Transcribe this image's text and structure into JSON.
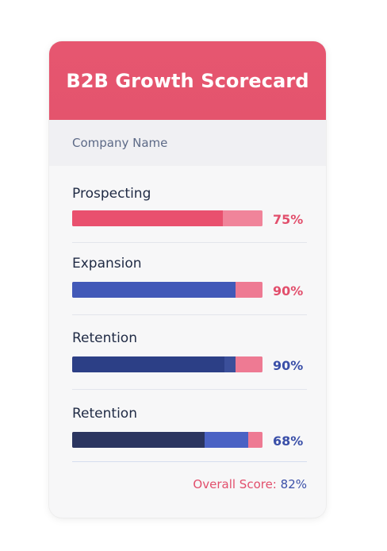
{
  "card": {
    "title": "B2B Growth Scorecard",
    "company_name": "Company Name"
  },
  "metrics": [
    {
      "label": "Prospecting",
      "value_text": "75%",
      "value_color": "#e24f6c",
      "segments": [
        {
          "fraction": 0.79,
          "color": "#e9506e"
        },
        {
          "fraction": 0.21,
          "color": "#f0849a"
        }
      ]
    },
    {
      "label": "Expansion",
      "value_text": "90%",
      "value_color": "#e24f6c",
      "segments": [
        {
          "fraction": 0.86,
          "color": "#4259b8"
        },
        {
          "fraction": 0.14,
          "color": "#ee7a93"
        }
      ]
    },
    {
      "label": "Retention",
      "value_text": "90%",
      "value_color": "#3a4fa8",
      "segments": [
        {
          "fraction": 0.8,
          "color": "#2c3f86"
        },
        {
          "fraction": 0.06,
          "color": "#3b4f9a"
        },
        {
          "fraction": 0.14,
          "color": "#ee7a93"
        }
      ]
    },
    {
      "label": "Retention",
      "value_text": "68%",
      "value_color": "#3a4fa8",
      "segments": [
        {
          "fraction": 0.695,
          "color": "#2b3560"
        },
        {
          "fraction": 0.23,
          "color": "#4a62c4"
        },
        {
          "fraction": 0.075,
          "color": "#ee7a93"
        }
      ]
    }
  ],
  "overall": {
    "label": "Overall Score:",
    "value": "82%",
    "label_color": "#e24f6c",
    "value_color": "#3a4fa8"
  },
  "colors": {
    "header": "#e65670",
    "card_bg": "#f7f7f8"
  }
}
